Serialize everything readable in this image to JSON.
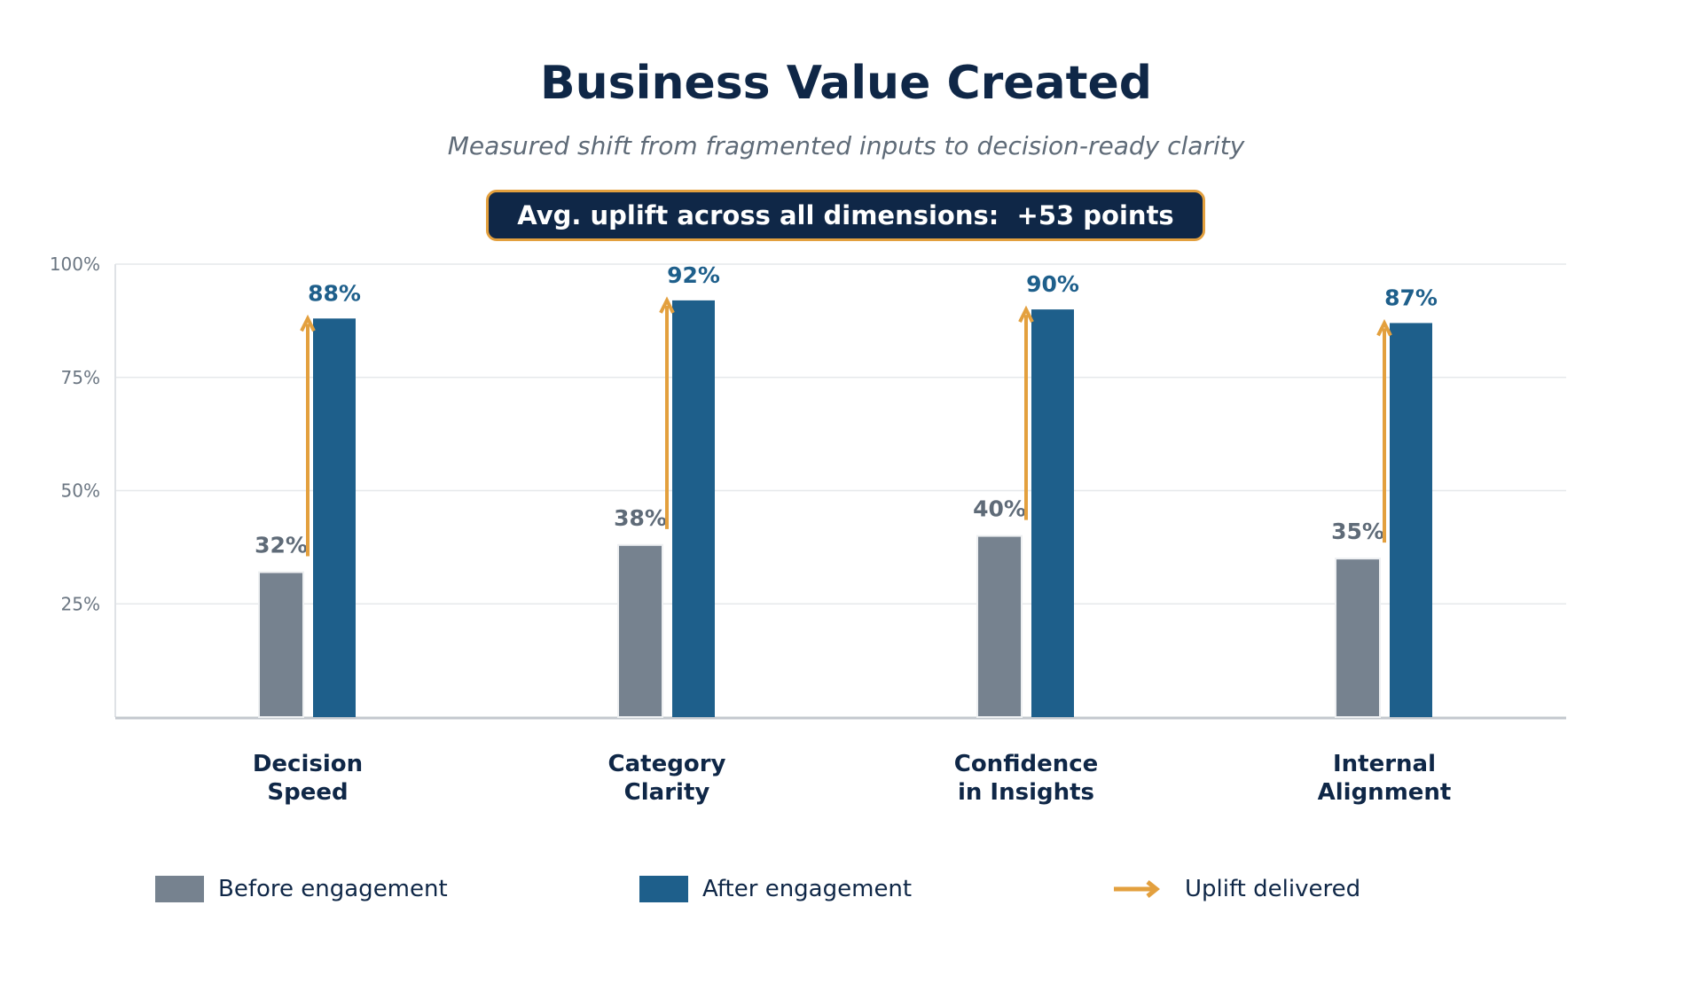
{
  "chart_data": {
    "type": "bar",
    "title": "Business Value Created",
    "subtitle": "Measured shift from fragmented inputs to decision-ready clarity",
    "callout": "Avg. uplift across all dimensions:  +53 points",
    "categories": [
      [
        "Decision",
        "Speed"
      ],
      [
        "Category",
        "Clarity"
      ],
      [
        "Confidence",
        "in Insights"
      ],
      [
        "Internal",
        "Alignment"
      ]
    ],
    "series": [
      {
        "name": "Before engagement",
        "values": [
          32,
          38,
          40,
          35
        ],
        "labels": [
          "32%",
          "38%",
          "40%",
          "35%"
        ],
        "color": "#76828f"
      },
      {
        "name": "After engagement",
        "values": [
          88,
          92,
          90,
          87
        ],
        "labels": [
          "88%",
          "92%",
          "90%",
          "87%"
        ],
        "color": "#1e5f8b"
      }
    ],
    "annotation": {
      "name": "Uplift delivered",
      "color": "#e3a03e"
    },
    "ylim": [
      0,
      100
    ],
    "yticks": [
      25,
      50,
      75,
      100
    ],
    "ytick_labels": [
      "25%",
      "50%",
      "75%",
      "100%"
    ],
    "grid": true,
    "legend_position": "bottom"
  }
}
